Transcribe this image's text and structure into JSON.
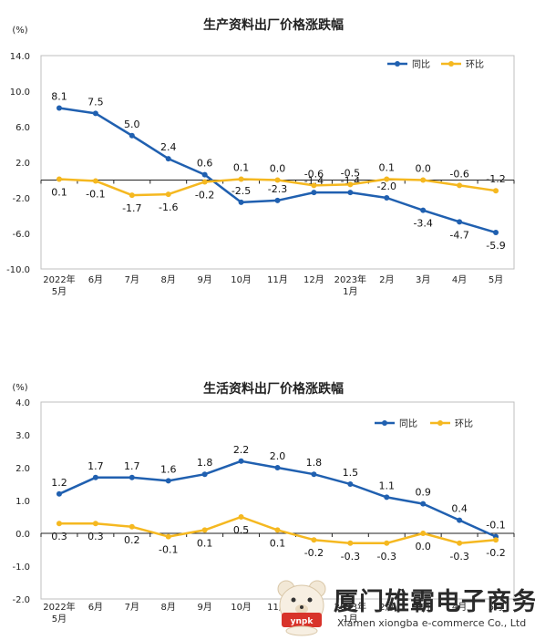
{
  "chart_data": [
    {
      "type": "line",
      "title": "生产资料出厂价格涨跌幅",
      "unit_label": "(%)",
      "categories": [
        [
          "2022年",
          "5月"
        ],
        [
          "6月"
        ],
        [
          "7月"
        ],
        [
          "8月"
        ],
        [
          "9月"
        ],
        [
          "10月"
        ],
        [
          "11月"
        ],
        [
          "12月"
        ],
        [
          "2023年",
          "1月"
        ],
        [
          "2月"
        ],
        [
          "3月"
        ],
        [
          "4月"
        ],
        [
          "5月"
        ]
      ],
      "y_ticks": [
        "14.0",
        "10.0",
        "6.0",
        "2.0",
        "-2.0",
        "-6.0",
        "-10.0"
      ],
      "ylim": [
        -10,
        14
      ],
      "legend_position": "top-right",
      "series": [
        {
          "name": "同比",
          "color": "#2060b0",
          "values": [
            8.1,
            7.5,
            5.0,
            2.4,
            0.6,
            -2.5,
            -2.3,
            -1.4,
            -1.4,
            -2.0,
            -3.4,
            -4.7,
            -5.9
          ],
          "labels": [
            "8.1",
            "7.5",
            "5.0",
            "2.4",
            "0.6",
            "-2.5",
            "-2.3",
            "-1.4",
            "-1.4",
            "-2.0",
            "-3.4",
            "-4.7",
            "-5.9"
          ]
        },
        {
          "name": "环比",
          "color": "#f5b820",
          "values": [
            0.1,
            -0.1,
            -1.7,
            -1.6,
            -0.2,
            0.1,
            0.0,
            -0.6,
            -0.5,
            0.1,
            0.0,
            -0.6,
            -1.2
          ],
          "labels": [
            "0.1",
            "-0.1",
            "-1.7",
            "-1.6",
            "-0.2",
            "0.1",
            "0.0",
            "-0.6",
            "-0.5",
            "0.1",
            "0.0",
            "-0.6",
            "-1.2"
          ]
        }
      ]
    },
    {
      "type": "line",
      "title": "生活资料出厂价格涨跌幅",
      "unit_label": "(%)",
      "categories": [
        [
          "2022年",
          "5月"
        ],
        [
          "6月"
        ],
        [
          "7月"
        ],
        [
          "8月"
        ],
        [
          "9月"
        ],
        [
          "10月"
        ],
        [
          "11月"
        ],
        [
          "12月"
        ],
        [
          "2023年",
          "1月"
        ],
        [
          "2月"
        ],
        [
          "3月"
        ],
        [
          "4月"
        ],
        [
          "5月"
        ]
      ],
      "y_ticks": [
        "4.0",
        "3.0",
        "2.0",
        "1.0",
        "0.0",
        "-1.0",
        "-2.0"
      ],
      "ylim": [
        -2,
        4
      ],
      "legend_position": "top-right",
      "series": [
        {
          "name": "同比",
          "color": "#2060b0",
          "values": [
            1.2,
            1.7,
            1.7,
            1.6,
            1.8,
            2.2,
            2.0,
            1.8,
            1.5,
            1.1,
            0.9,
            0.4,
            -0.1
          ],
          "labels": [
            "1.2",
            "1.7",
            "1.7",
            "1.6",
            "1.8",
            "2.2",
            "2.0",
            "1.8",
            "1.5",
            "1.1",
            "0.9",
            "0.4",
            "-0.1"
          ]
        },
        {
          "name": "环比",
          "color": "#f5b820",
          "values": [
            0.3,
            0.3,
            0.2,
            -0.1,
            0.1,
            0.5,
            0.1,
            -0.2,
            -0.3,
            -0.3,
            0.0,
            -0.3,
            -0.2
          ],
          "labels": [
            "0.3",
            "0.3",
            "0.2",
            "-0.1",
            "0.1",
            "0.5",
            "0.1",
            "-0.2",
            "-0.3",
            "-0.3",
            "0.0",
            "-0.3",
            "-0.2"
          ]
        }
      ]
    }
  ],
  "watermark": {
    "title": "厦门雄霸电子商务",
    "subtitle": "Xiamen xiongba e-commerce Co., Ltd",
    "logo_text": "ynpk"
  }
}
